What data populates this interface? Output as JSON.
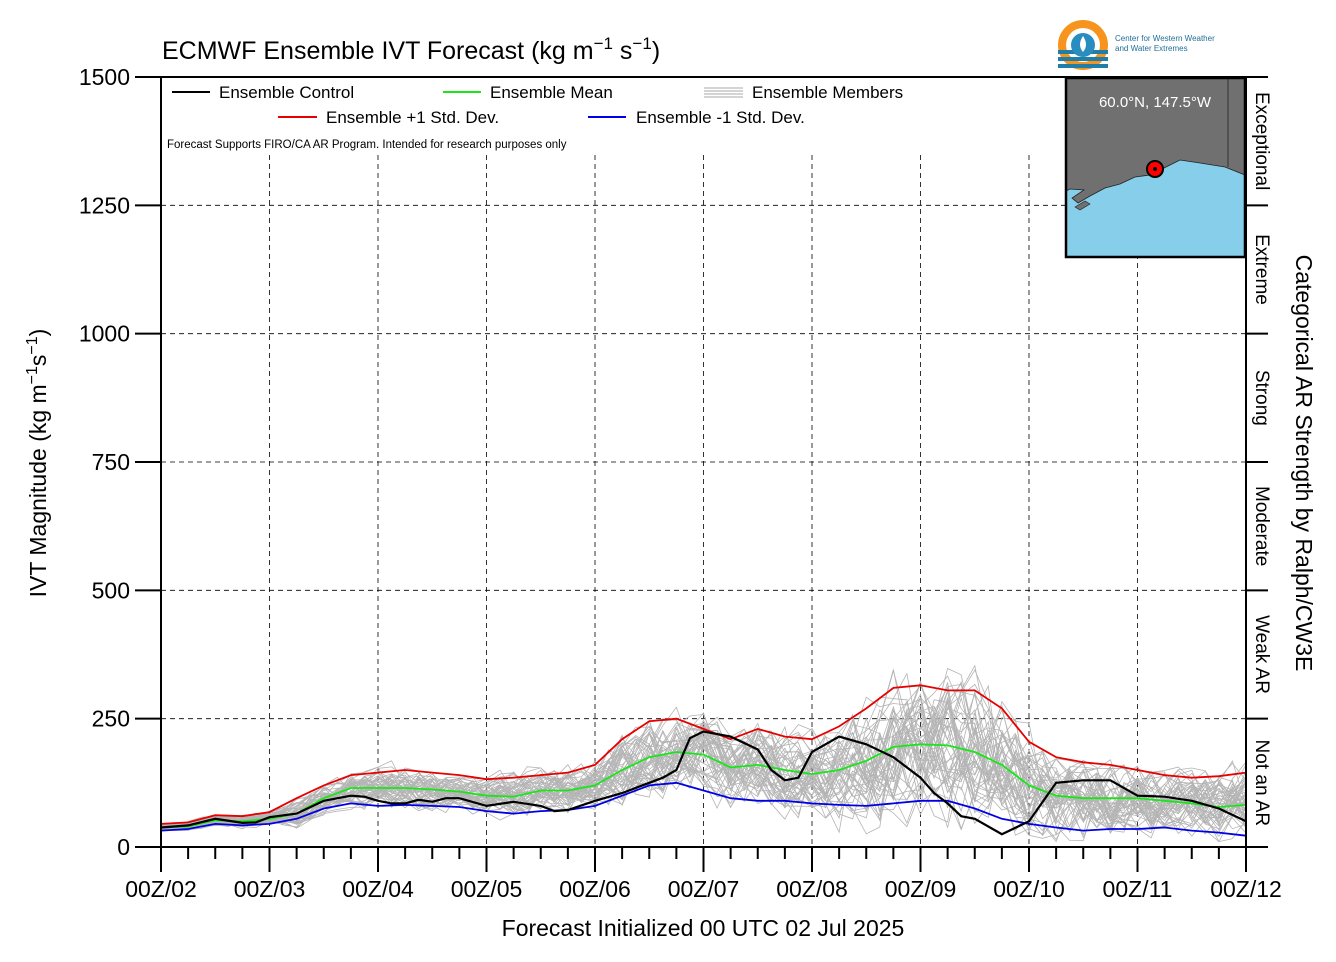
{
  "chart_data": {
    "type": "line",
    "title": "ECMWF Ensemble IVT Forecast (kg m",
    "title_sup1": "−1",
    "title_mid": " s",
    "title_sup2": "−1",
    "title_end": ")",
    "ylabel": "IVT Magnitude (kg m",
    "ylabel_sup1": "−1",
    "ylabel_mid": "s",
    "ylabel_sup2": "−1",
    "ylabel_end": ")",
    "xlabel": "Forecast Initialized 00 UTC 02 Jul 2025",
    "right_axis_label": "Categorical AR Strength by Ralph/CW3E",
    "note": "Forecast Supports FIRO/CA AR Program. Intended for research purposes only",
    "ylim": [
      0,
      1500
    ],
    "xlim": [
      0,
      240
    ],
    "x_units": "forecast hours",
    "yticks": [
      0,
      250,
      500,
      750,
      1000,
      1250,
      1500
    ],
    "ytick_labels": [
      "0",
      "250",
      "500",
      "750",
      "1000",
      "1250",
      "1500"
    ],
    "xticks": [
      0,
      24,
      48,
      72,
      96,
      120,
      144,
      168,
      192,
      216,
      240
    ],
    "xtick_labels": [
      "00Z/02",
      "00Z/03",
      "00Z/04",
      "00Z/05",
      "00Z/06",
      "00Z/07",
      "00Z/08",
      "00Z/09",
      "00Z/10",
      "00Z/11",
      "00Z/12"
    ],
    "grid": true,
    "legend": {
      "placement": "top",
      "entries": [
        {
          "label": "Ensemble Control",
          "color": "#000000"
        },
        {
          "label": "Ensemble Mean",
          "color": "#19e619"
        },
        {
          "label": "Ensemble Members",
          "color": "#aaaaaa"
        },
        {
          "label": "Ensemble +1 Std. Dev.",
          "color": "#e60000"
        },
        {
          "label": "Ensemble -1 Std. Dev.",
          "color": "#0000e6"
        }
      ]
    },
    "categories_right": [
      {
        "label": "Not an AR",
        "from": 0,
        "to": 250
      },
      {
        "label": "Weak AR",
        "from": 250,
        "to": 500
      },
      {
        "label": "Moderate",
        "from": 500,
        "to": 750
      },
      {
        "label": "Strong",
        "from": 750,
        "to": 1000
      },
      {
        "label": "Extreme",
        "from": 1000,
        "to": 1250
      },
      {
        "label": "Exceptional",
        "from": 1250,
        "to": 1500
      }
    ],
    "series": [
      {
        "name": "Ensemble Control",
        "color": "#000000",
        "x": [
          0,
          6,
          12,
          18,
          21,
          24,
          30,
          36,
          42,
          45,
          48,
          51,
          54,
          57,
          60,
          63,
          66,
          72,
          78,
          84,
          87,
          90,
          96,
          102,
          108,
          111,
          114,
          117,
          120,
          126,
          132,
          135,
          138,
          141,
          144,
          150,
          156,
          162,
          168,
          171,
          174,
          177,
          180,
          186,
          192,
          198,
          204,
          210,
          216,
          222,
          228,
          234,
          240
        ],
        "y": [
          38,
          42,
          55,
          47,
          48,
          58,
          65,
          90,
          100,
          98,
          90,
          85,
          85,
          92,
          88,
          95,
          95,
          80,
          88,
          80,
          70,
          72,
          90,
          105,
          125,
          135,
          150,
          212,
          225,
          215,
          190,
          150,
          130,
          135,
          185,
          215,
          200,
          175,
          135,
          105,
          85,
          60,
          55,
          25,
          50,
          125,
          130,
          130,
          100,
          98,
          90,
          75,
          50
        ]
      },
      {
        "name": "Ensemble Mean",
        "color": "#19e619",
        "x": [
          0,
          6,
          12,
          18,
          24,
          30,
          36,
          42,
          48,
          54,
          60,
          66,
          72,
          78,
          84,
          90,
          96,
          102,
          108,
          114,
          120,
          126,
          132,
          138,
          144,
          150,
          156,
          162,
          168,
          174,
          180,
          186,
          192,
          198,
          204,
          210,
          216,
          222,
          228,
          234,
          240
        ],
        "y": [
          38,
          40,
          52,
          50,
          55,
          65,
          95,
          115,
          115,
          115,
          112,
          108,
          100,
          98,
          110,
          110,
          120,
          150,
          175,
          185,
          180,
          155,
          160,
          150,
          142,
          150,
          168,
          195,
          200,
          198,
          185,
          160,
          120,
          100,
          95,
          95,
          95,
          90,
          85,
          78,
          82
        ]
      },
      {
        "name": "Ensemble +1 Std. Dev.",
        "color": "#e60000",
        "x": [
          0,
          6,
          12,
          18,
          24,
          30,
          36,
          42,
          48,
          54,
          60,
          66,
          72,
          78,
          84,
          90,
          96,
          102,
          108,
          114,
          120,
          126,
          132,
          138,
          144,
          150,
          156,
          162,
          168,
          174,
          180,
          186,
          192,
          198,
          204,
          210,
          216,
          222,
          228,
          234,
          240
        ],
        "y": [
          45,
          48,
          62,
          60,
          68,
          95,
          120,
          140,
          145,
          150,
          145,
          140,
          132,
          135,
          140,
          145,
          160,
          210,
          245,
          250,
          230,
          210,
          230,
          215,
          210,
          235,
          270,
          310,
          315,
          305,
          305,
          270,
          205,
          175,
          165,
          160,
          150,
          140,
          135,
          138,
          145
        ]
      },
      {
        "name": "Ensemble -1 Std. Dev.",
        "color": "#0000e6",
        "x": [
          0,
          6,
          12,
          18,
          24,
          30,
          36,
          42,
          48,
          54,
          60,
          66,
          72,
          78,
          84,
          90,
          96,
          102,
          108,
          114,
          120,
          126,
          132,
          138,
          144,
          150,
          156,
          162,
          168,
          174,
          180,
          186,
          192,
          198,
          204,
          210,
          216,
          222,
          228,
          234,
          240
        ],
        "y": [
          32,
          35,
          45,
          42,
          45,
          55,
          75,
          85,
          80,
          82,
          80,
          78,
          70,
          65,
          70,
          72,
          80,
          100,
          120,
          125,
          110,
          95,
          90,
          90,
          85,
          82,
          80,
          85,
          90,
          90,
          75,
          55,
          45,
          38,
          32,
          35,
          35,
          38,
          32,
          28,
          22
        ]
      }
    ]
  },
  "map_inset": {
    "location_label": "60.0°N, 147.5°W",
    "ocean_color": "#87ceeb",
    "land_color": "#707070"
  },
  "logo": {
    "line1": "Center for Western Weather",
    "line2": "and Water Extremes"
  }
}
